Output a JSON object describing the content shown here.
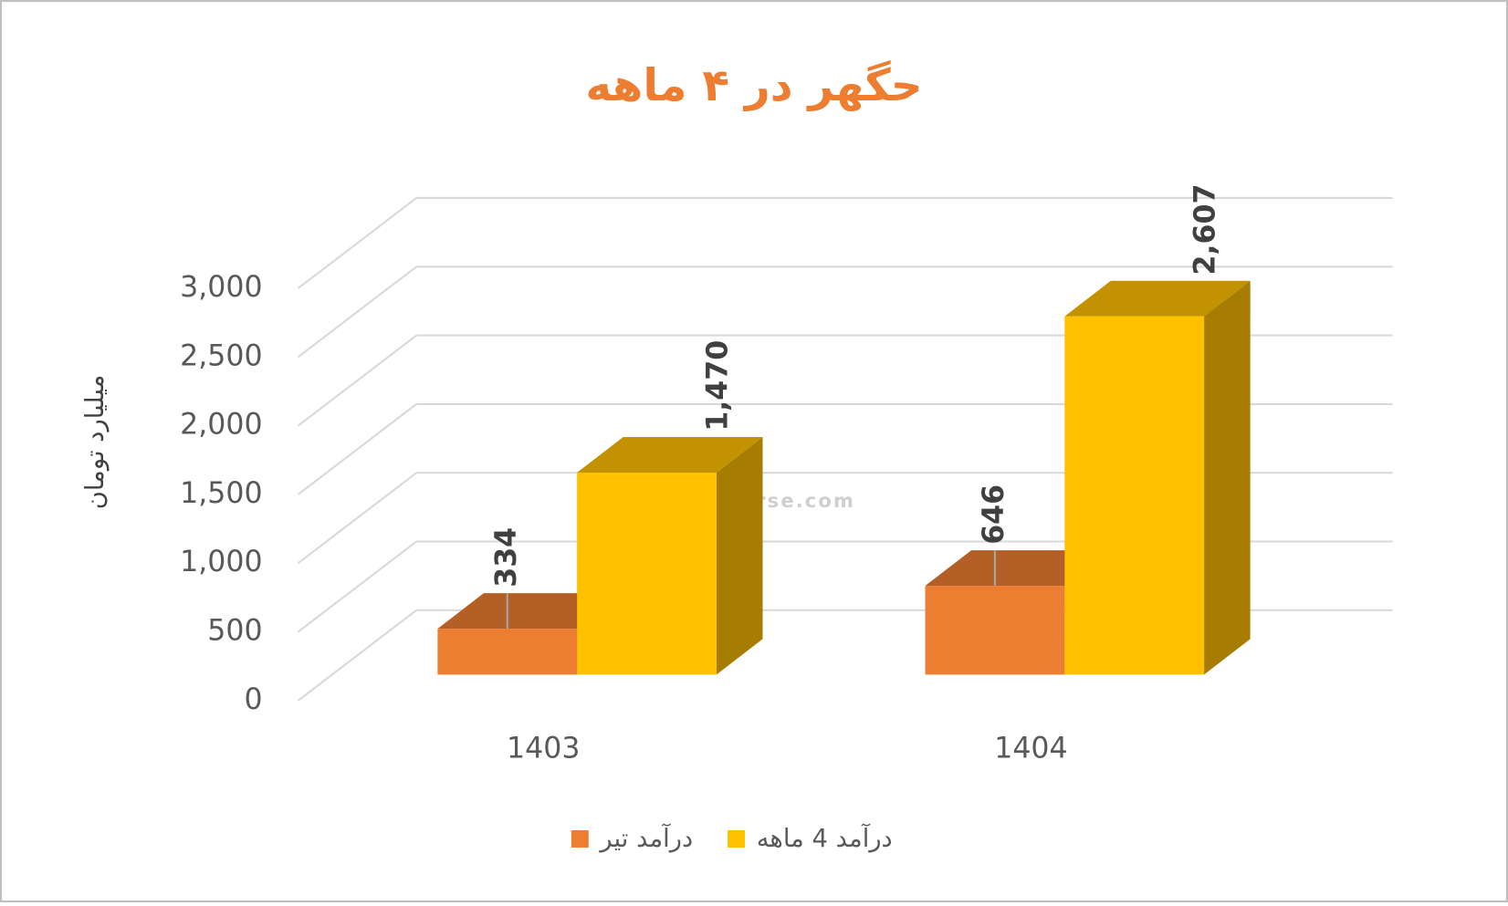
{
  "chart_data": {
    "type": "bar3d",
    "title": "حگهر در ۴ ماهه",
    "y_axis_label": "میلیارد تومان",
    "watermark": "nabzebourse.com",
    "categories": [
      "1403",
      "1404"
    ],
    "series": [
      {
        "name": "درآمد تیر",
        "color": "#ED7D31",
        "values": [
          334,
          646
        ]
      },
      {
        "name": "درآمد 4 ماهه",
        "color": "#FFC000",
        "values": [
          1470,
          2607
        ],
        "value_labels": [
          "1,470",
          "2,607"
        ]
      }
    ],
    "ylim": [
      0,
      3000
    ],
    "yticks": [
      0,
      500,
      {
        "value": 1000,
        "label": "1,000"
      },
      {
        "value": 1500,
        "label": "1,500"
      },
      {
        "value": 2000,
        "label": "2,000"
      },
      {
        "value": 2500,
        "label": "2,500"
      },
      {
        "value": 3000,
        "label": "3,000"
      }
    ],
    "grid": true
  }
}
